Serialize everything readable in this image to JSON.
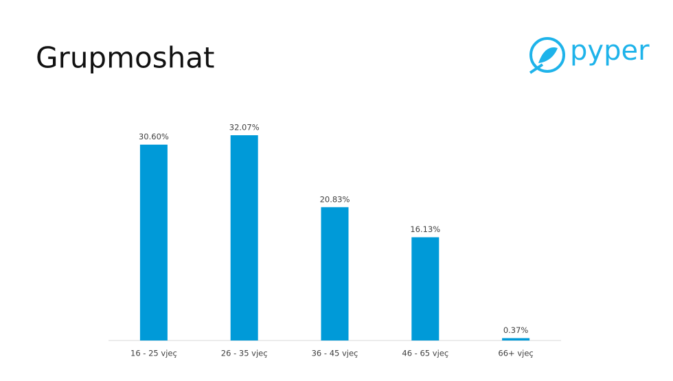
{
  "title": "Grupmoshat",
  "logo": "pyper",
  "chart_data": {
    "type": "bar",
    "categories": [
      "16 - 25 vjeç",
      "26 - 35 vjeç",
      "36 - 45 vjeç",
      "46 - 65 vjeç",
      "66+ vjeç"
    ],
    "values": [
      30.6,
      32.07,
      20.83,
      16.13,
      0.37
    ],
    "value_labels": [
      "30.60%",
      "32.07%",
      "20.83%",
      "16.13%",
      "0.37%"
    ],
    "color": "#009ad8"
  }
}
